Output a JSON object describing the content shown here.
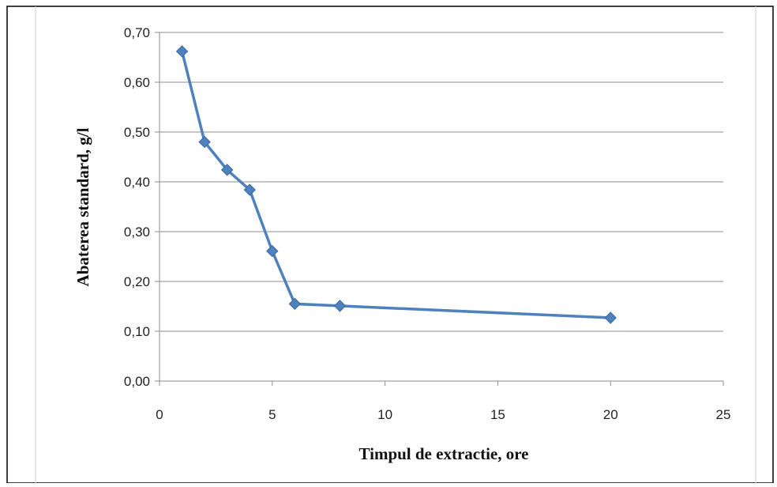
{
  "chart_data": {
    "type": "line",
    "title": "",
    "xlabel": "Timpul de extractie, ore",
    "ylabel": "Abaterea standard, g/l",
    "xlim": [
      0,
      25
    ],
    "ylim": [
      0,
      0.7
    ],
    "x_ticks": [
      0,
      5,
      10,
      15,
      20,
      25
    ],
    "x_tick_labels": [
      "0",
      "5",
      "10",
      "15",
      "20",
      "25"
    ],
    "y_ticks": [
      0,
      0.1,
      0.2,
      0.3,
      0.4,
      0.5,
      0.6,
      0.7
    ],
    "y_tick_labels": [
      "0,00",
      "0,10",
      "0,20",
      "0,30",
      "0,40",
      "0,50",
      "0,60",
      "0,70"
    ],
    "grid": "horizontal",
    "legend": "none",
    "series": [
      {
        "color": "#4f81bd",
        "marker": "diamond",
        "x": [
          1,
          2,
          3,
          4,
          5,
          6,
          8,
          20
        ],
        "y": [
          0.662,
          0.48,
          0.424,
          0.384,
          0.261,
          0.155,
          0.151,
          0.127
        ]
      }
    ]
  }
}
